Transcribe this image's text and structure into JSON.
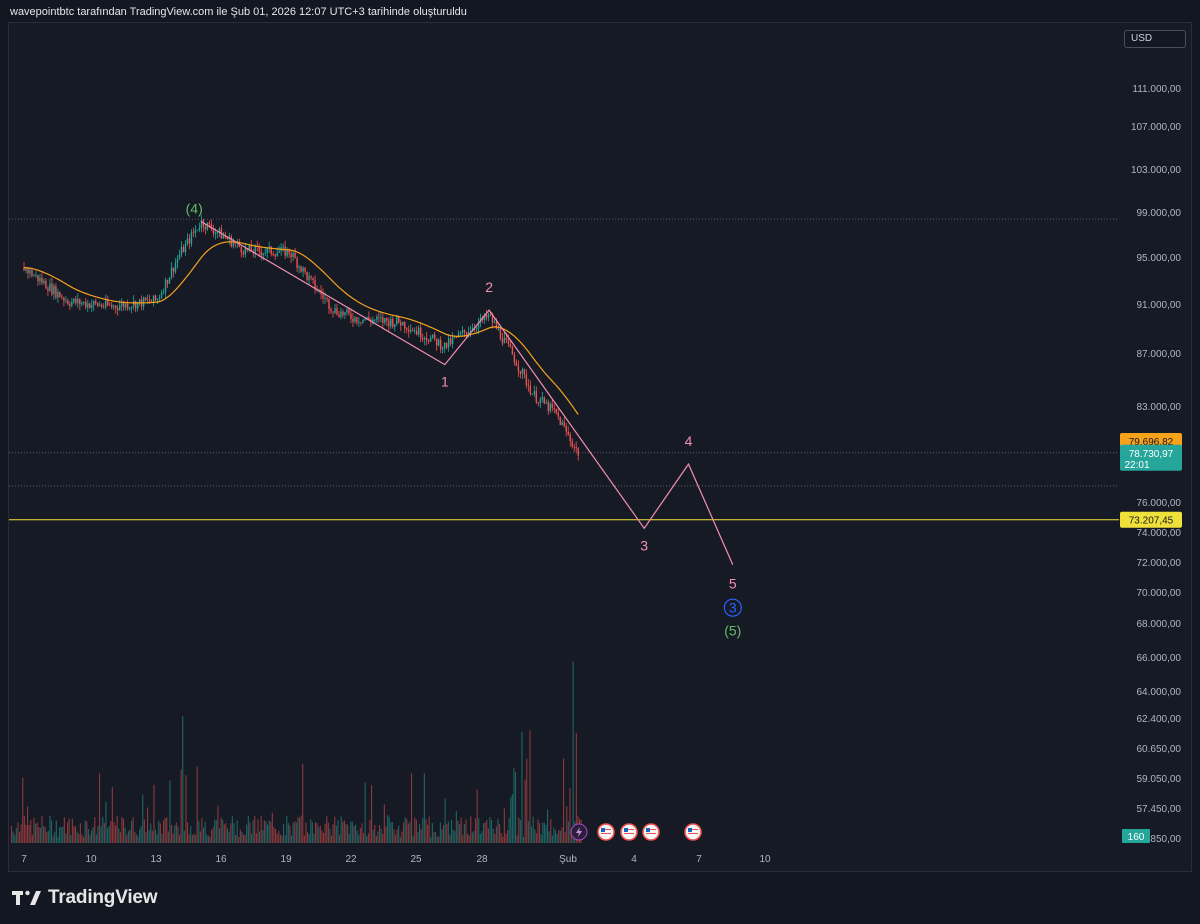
{
  "header": {
    "attribution": "wavepointbtc tarafından TradingView.com ile Şub 01, 2026 12:07 UTC+3 tarihinde oluşturuldu"
  },
  "currency": "USD",
  "footer": {
    "brand": "TradingView"
  },
  "colors": {
    "background": "#161a25",
    "up": "#26a69a",
    "down": "#ef5350",
    "ma_line": "#f7a21b",
    "wave_line": "#f48fb1",
    "wave_green": "#66bb6a",
    "wave_blue": "#2962ff",
    "support_line": "#f0e13a",
    "price_tag": "#26a69a",
    "orange_tag": "#f7a21b"
  },
  "chart_data": {
    "type": "candlestick",
    "symbol_pair": "USD",
    "y_axis": {
      "ticks": [
        "111.000,00",
        "107.000,00",
        "103.000,00",
        "99.000,00",
        "95.000,00",
        "91.000,00",
        "87.000,00",
        "83.000,00",
        "76.000,00",
        "74.000,00",
        "72.000,00",
        "70.000,00",
        "68.000,00",
        "66.000,00",
        "64.000,00",
        "62.400,00",
        "60.650,00",
        "59.050,00",
        "57.450,00",
        "55.850,00"
      ]
    },
    "x_axis": {
      "ticks": [
        "7",
        "10",
        "13",
        "16",
        "19",
        "22",
        "25",
        "28",
        "Şub",
        "4",
        "7",
        "10"
      ]
    },
    "price_tags": [
      {
        "label": "79.696,82",
        "value": 79696.82,
        "kind": "orange"
      },
      {
        "label": "78.730,97",
        "value": 78730.97,
        "kind": "last",
        "countdown": "22:01"
      },
      {
        "label": "73.207,45",
        "value": 73207.45,
        "kind": "support"
      }
    ],
    "horizontal_lines": [
      {
        "value": 98000,
        "style": "dotted"
      },
      {
        "value": 78730.97,
        "style": "dotted"
      },
      {
        "value": 76000,
        "style": "dotted"
      },
      {
        "value": 73207.45,
        "style": "solid-yellow"
      }
    ],
    "volume_badge": "160",
    "price_series_approx": [
      {
        "date": "Jan 7",
        "close": 94000
      },
      {
        "date": "Jan 9",
        "close": 91200
      },
      {
        "date": "Jan 11",
        "close": 90800
      },
      {
        "date": "Jan 13",
        "close": 91300
      },
      {
        "date": "Jan 14",
        "close": 95000
      },
      {
        "date": "Jan 15",
        "close": 97800
      },
      {
        "date": "Jan 17",
        "close": 95400
      },
      {
        "date": "Jan 19",
        "close": 95300
      },
      {
        "date": "Jan 20",
        "close": 92700
      },
      {
        "date": "Jan 21",
        "close": 90500
      },
      {
        "date": "Jan 22",
        "close": 89800
      },
      {
        "date": "Jan 24",
        "close": 89500
      },
      {
        "date": "Jan 26",
        "close": 87500
      },
      {
        "date": "Jan 27",
        "close": 88800
      },
      {
        "date": "Jan 28",
        "close": 90000
      },
      {
        "date": "Jan 29",
        "close": 87000
      },
      {
        "date": "Jan 30",
        "close": 83500
      },
      {
        "date": "Jan 31",
        "close": 82000
      },
      {
        "date": "Feb 1",
        "close": 78731
      }
    ],
    "wave_count": [
      {
        "label": "(4)",
        "date": "Jan 15",
        "price": 97800,
        "color": "green"
      },
      {
        "label": "1",
        "date": "Jan 26",
        "price": 86000,
        "color": "pink"
      },
      {
        "label": "2",
        "date": "Jan 28",
        "price": 90500,
        "color": "pink"
      },
      {
        "label": "3",
        "date": "Feb 4",
        "price": 72500,
        "color": "pink"
      },
      {
        "label": "4",
        "date": "Feb 6",
        "price": 77800,
        "color": "pink"
      },
      {
        "label": "5",
        "date": "Feb 8",
        "price": 69500,
        "color": "pink"
      },
      {
        "label": "3",
        "date": "Feb 8",
        "price": 69500,
        "color": "blue-circle"
      },
      {
        "label": "(5)",
        "date": "Feb 8",
        "price": 69500,
        "color": "green"
      }
    ],
    "event_icons": [
      "lightning",
      "us-flag",
      "us-flag",
      "us-flag",
      "us-flag"
    ]
  }
}
